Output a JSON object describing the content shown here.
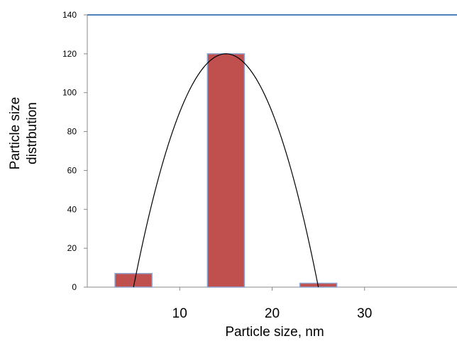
{
  "chart_data": {
    "type": "bar",
    "title": "",
    "xlabel": "Particle size, nm",
    "ylabel_lines": [
      "Particle size",
      "distrbution"
    ],
    "x_ticks": [
      10,
      20,
      30
    ],
    "y_ticks": [
      0,
      20,
      40,
      60,
      80,
      100,
      120,
      140
    ],
    "xlim": [
      0,
      40
    ],
    "ylim": [
      0,
      140
    ],
    "bars": [
      {
        "x": 5,
        "value": 7
      },
      {
        "x": 15,
        "value": 120
      },
      {
        "x": 25,
        "value": 2
      }
    ],
    "bar_width": 4,
    "fit_curve": {
      "type": "parabola",
      "vertex": [
        15,
        120
      ],
      "zero_crossings": [
        5,
        25
      ]
    },
    "grid": false,
    "legend": "none",
    "colors": {
      "bar_fill": "#c0504d",
      "bar_edge": "#8ea3cf",
      "top_border": "#4f81bd",
      "curve": "#000000"
    }
  }
}
